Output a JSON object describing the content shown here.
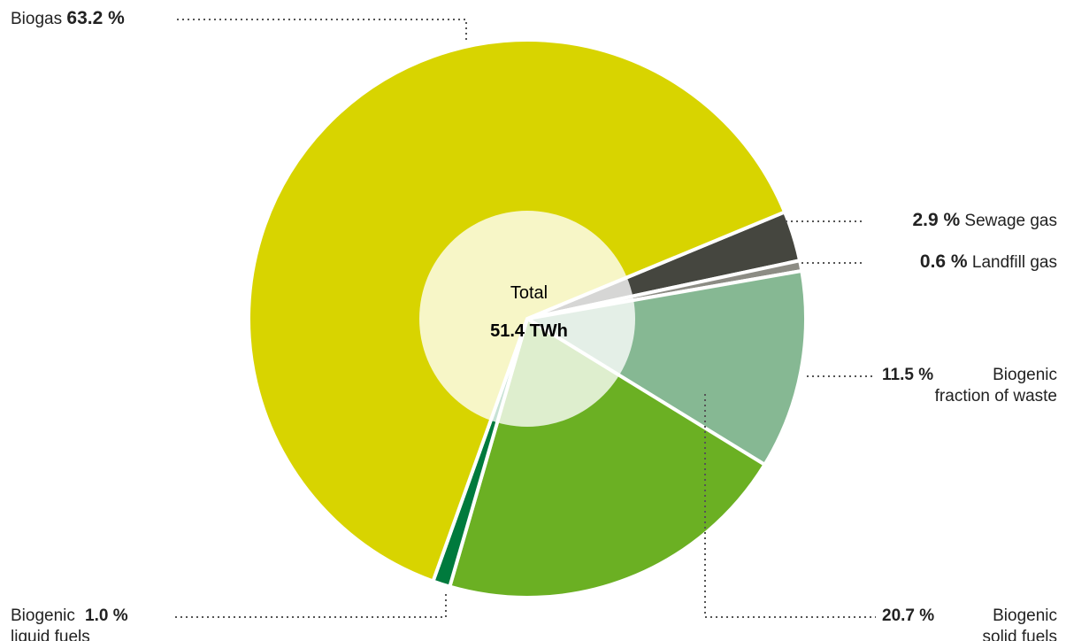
{
  "chart_data": {
    "type": "pie",
    "categories": [
      "Sewage gas",
      "Landfill gas",
      "Biogenic\nfraction of waste",
      "Biogenic\nsolid fuels",
      "Biogenic\nliquid fuels",
      "Biogas"
    ],
    "values": [
      2.9,
      0.6,
      11.5,
      20.7,
      1.0,
      63.2
    ],
    "value_labels": [
      "2.9 %",
      "0.6 %",
      "11.5 %",
      "20.7 %",
      "1.0 %",
      "63.2 %"
    ],
    "colors": [
      "#45463f",
      "#8c8c84",
      "#86b893",
      "#6bb023",
      "#007a3d",
      "#d8d400"
    ],
    "center_title": "Total",
    "center_value": "51.4 TWh"
  }
}
